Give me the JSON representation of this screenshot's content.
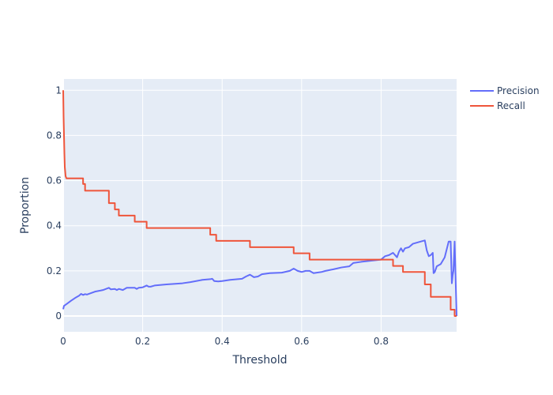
{
  "chart_data": {
    "type": "line",
    "title": "",
    "xlabel": "Threshold",
    "ylabel": "Proportion",
    "xlim": [
      0,
      0.99
    ],
    "ylim": [
      -0.07,
      1.05
    ],
    "xticks": [
      0,
      0.2,
      0.4,
      0.6,
      0.8
    ],
    "xtick_labels": [
      "0",
      "0.2",
      "0.4",
      "0.6",
      "0.8"
    ],
    "yticks": [
      0,
      0.2,
      0.4,
      0.6,
      0.8,
      1
    ],
    "ytick_labels": [
      "0",
      "0.2",
      "0.4",
      "0.6",
      "0.8",
      "1"
    ],
    "grid": true,
    "legend_position": "top-right",
    "series": [
      {
        "name": "Precision",
        "color": "#636efa",
        "x": [
          0.0,
          0.002,
          0.01,
          0.02,
          0.03,
          0.04,
          0.045,
          0.05,
          0.055,
          0.06,
          0.08,
          0.1,
          0.115,
          0.12,
          0.13,
          0.135,
          0.14,
          0.15,
          0.16,
          0.18,
          0.185,
          0.19,
          0.2,
          0.21,
          0.215,
          0.22,
          0.23,
          0.26,
          0.3,
          0.32,
          0.35,
          0.37,
          0.375,
          0.38,
          0.39,
          0.4,
          0.42,
          0.45,
          0.46,
          0.47,
          0.48,
          0.49,
          0.5,
          0.52,
          0.55,
          0.57,
          0.58,
          0.59,
          0.6,
          0.61,
          0.62,
          0.63,
          0.65,
          0.66,
          0.68,
          0.7,
          0.72,
          0.73,
          0.75,
          0.8,
          0.81,
          0.82,
          0.83,
          0.84,
          0.845,
          0.85,
          0.855,
          0.86,
          0.87,
          0.88,
          0.9,
          0.91,
          0.915,
          0.92,
          0.925,
          0.93,
          0.932,
          0.935,
          0.94,
          0.95,
          0.96,
          0.97,
          0.975,
          0.978,
          0.98,
          0.982,
          0.985,
          0.99
        ],
        "y": [
          0.03,
          0.045,
          0.055,
          0.068,
          0.08,
          0.09,
          0.098,
          0.093,
          0.097,
          0.095,
          0.108,
          0.115,
          0.125,
          0.118,
          0.12,
          0.115,
          0.12,
          0.115,
          0.125,
          0.125,
          0.12,
          0.125,
          0.127,
          0.135,
          0.13,
          0.13,
          0.135,
          0.14,
          0.145,
          0.15,
          0.16,
          0.163,
          0.165,
          0.155,
          0.153,
          0.155,
          0.16,
          0.165,
          0.175,
          0.183,
          0.172,
          0.175,
          0.185,
          0.19,
          0.192,
          0.2,
          0.21,
          0.2,
          0.195,
          0.2,
          0.2,
          0.19,
          0.195,
          0.2,
          0.207,
          0.215,
          0.22,
          0.235,
          0.24,
          0.25,
          0.265,
          0.27,
          0.28,
          0.26,
          0.285,
          0.3,
          0.285,
          0.3,
          0.305,
          0.32,
          0.33,
          0.335,
          0.29,
          0.265,
          0.27,
          0.28,
          0.19,
          0.195,
          0.22,
          0.23,
          0.26,
          0.33,
          0.33,
          0.145,
          0.18,
          0.2,
          0.33,
          0.0
        ]
      },
      {
        "name": "Recall",
        "color": "#ef553b",
        "x": [
          0.0,
          0.001,
          0.002,
          0.003,
          0.004,
          0.005,
          0.006,
          0.008,
          0.05,
          0.05,
          0.055,
          0.055,
          0.115,
          0.115,
          0.13,
          0.13,
          0.14,
          0.14,
          0.18,
          0.18,
          0.21,
          0.21,
          0.22,
          0.22,
          0.37,
          0.37,
          0.385,
          0.385,
          0.47,
          0.47,
          0.58,
          0.58,
          0.62,
          0.62,
          0.83,
          0.83,
          0.845,
          0.845,
          0.855,
          0.855,
          0.91,
          0.91,
          0.925,
          0.925,
          0.975,
          0.975,
          0.985,
          0.985,
          0.99
        ],
        "y": [
          1.0,
          0.88,
          0.8,
          0.72,
          0.66,
          0.64,
          0.62,
          0.61,
          0.61,
          0.585,
          0.585,
          0.555,
          0.555,
          0.5,
          0.5,
          0.472,
          0.472,
          0.445,
          0.445,
          0.418,
          0.418,
          0.39,
          0.39,
          0.39,
          0.39,
          0.36,
          0.36,
          0.333,
          0.333,
          0.305,
          0.305,
          0.278,
          0.278,
          0.25,
          0.25,
          0.222,
          0.222,
          0.222,
          0.222,
          0.195,
          0.195,
          0.14,
          0.14,
          0.085,
          0.085,
          0.028,
          0.028,
          0.0,
          0.0
        ]
      }
    ]
  }
}
